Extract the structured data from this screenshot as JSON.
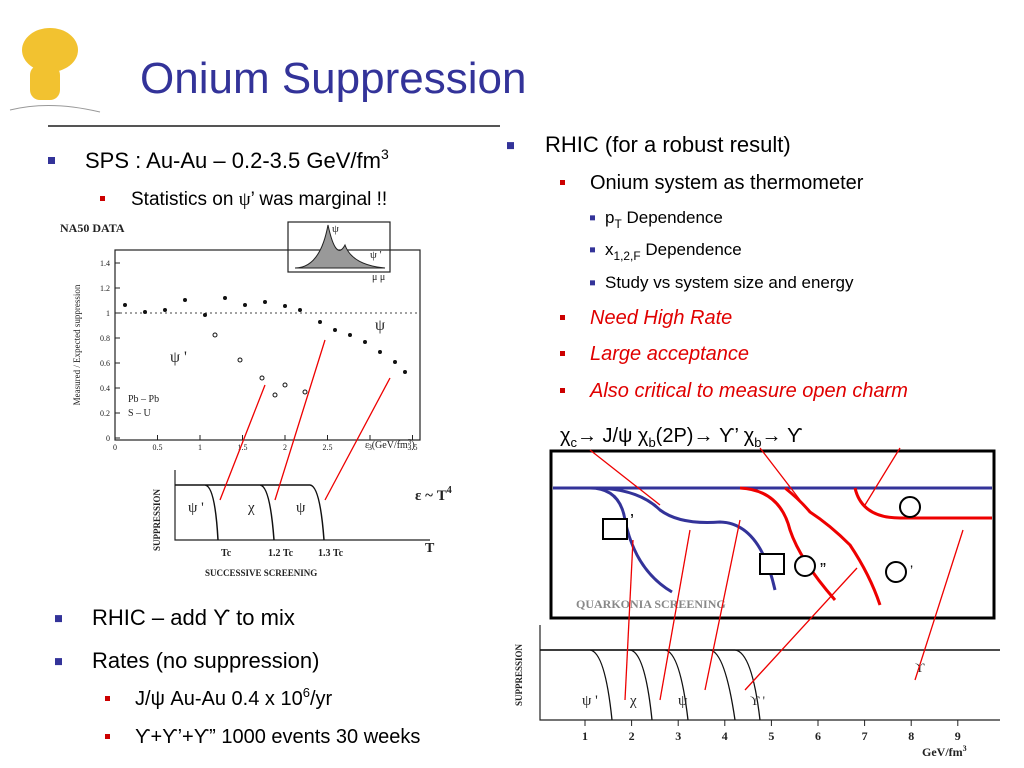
{
  "header": {
    "title": "Onium Suppression"
  },
  "left_bullets": [
    {
      "level": 1,
      "parts": [
        "SPS : Au-Au – 0.2-3.5 GeV/fm",
        "3"
      ]
    },
    {
      "level": 2,
      "parts": [
        "Statistics on ",
        "ψ",
        "’ was marginal !!"
      ]
    }
  ],
  "right_bullets": [
    {
      "level": 1,
      "parts": [
        "RHIC (for a robust result)"
      ]
    },
    {
      "level": 2,
      "parts": [
        "Onium system as thermometer"
      ]
    },
    {
      "level": 3,
      "parts": [
        "p",
        "T",
        " Dependence"
      ]
    },
    {
      "level": 3,
      "parts": [
        "x",
        "1,2,F",
        " Dependence"
      ]
    },
    {
      "level": 3,
      "parts": [
        "Study vs system size and energy"
      ]
    },
    {
      "level": 2,
      "parts": [
        "Need High Rate"
      ]
    },
    {
      "level": 2,
      "parts": [
        "Large acceptance"
      ]
    },
    {
      "level": 2,
      "parts": [
        "Also critical to measure open charm"
      ]
    }
  ],
  "symbol_line": [
    "χ",
    "c",
    "→ J/ψ  χ",
    "b",
    "(2P)→ ϒ’ χ",
    "b",
    "→ ϒ"
  ],
  "bottom_bullets": [
    {
      "level": 1,
      "parts": [
        "RHIC – add ",
        "ϒ",
        " to mix"
      ]
    },
    {
      "level": 1,
      "parts": [
        "Rates (no suppression)"
      ]
    },
    {
      "level": 2,
      "parts": [
        "J/",
        "ψ",
        " Au-Au 0.4 x 10",
        "6",
        "/yr"
      ]
    },
    {
      "level": 2,
      "parts": [
        "ϒ+ϒ’+ϒ” 1000 events 30 weeks"
      ]
    }
  ],
  "na50_plot": {
    "label": "NA50  DATA",
    "y_label": "Measured / Expected suppression",
    "yticks": [
      0,
      0.2,
      0.4,
      0.6,
      0.8,
      1,
      1.2,
      1.4
    ],
    "xticks": [
      0,
      0.5,
      1,
      1.5,
      2,
      2.5,
      3,
      3.5
    ],
    "x_label": [
      "ε (GeV/fm",
      "3",
      ")"
    ],
    "legend": [
      "Pb – Pb",
      "S – U"
    ],
    "psi_label": "ψ",
    "psiprime_label": "ψ '",
    "inset": [
      "ψ",
      "ψ '",
      "μ μ"
    ]
  },
  "screening_plot": {
    "y_label": "SUPPRESSION",
    "curves": [
      "ψ '",
      "χ",
      "ψ"
    ],
    "x_marks": [
      "Tc",
      "1.2 Tc",
      "1.3 Tc"
    ],
    "caption": "SUCCESSIVE SCREENING",
    "relation": [
      "ε  ~  T",
      "4"
    ],
    "x_label": "T"
  },
  "quarkonia_plot": {
    "caption": "QUARKONIA  SCREENING",
    "marks": [
      "’",
      "”",
      "’"
    ]
  },
  "energy_plot": {
    "y_label": "SUPPRESSION",
    "curves": [
      "ψ '",
      "χ",
      "ψ",
      "ϒ '",
      "ϒ"
    ],
    "xticks": [
      1,
      2,
      3,
      4,
      5,
      6,
      7,
      8,
      9
    ],
    "x_label": [
      "GeV/fm",
      "3"
    ]
  }
}
